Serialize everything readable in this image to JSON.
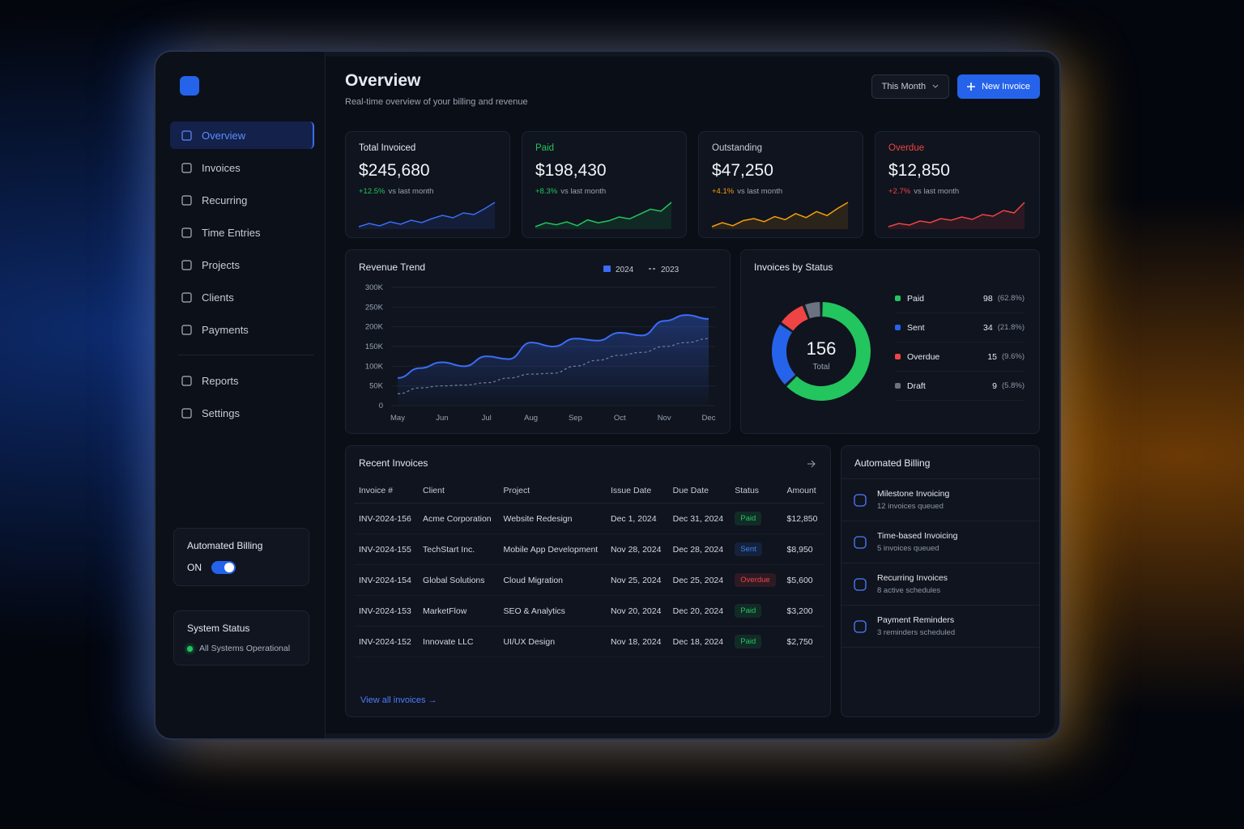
{
  "sidebar": {
    "nav": [
      "Overview",
      "Invoices",
      "Recurring",
      "Time Entries",
      "Projects",
      "Clients",
      "Payments"
    ],
    "nav_secondary": [
      "Reports",
      "Settings"
    ],
    "billing_card": {
      "title": "Automated Billing",
      "toggle": "ON"
    },
    "status_card": {
      "title": "System Status",
      "status": "All Systems Operational"
    }
  },
  "header": {
    "title": "Overview",
    "subtitle": "Real-time overview of your billing and revenue",
    "period": "This Month",
    "button": "New Invoice"
  },
  "kpis": [
    {
      "label": "Total Invoiced",
      "value": "$245,680",
      "change": "+12.5%",
      "change_note": "vs last month",
      "label_color": "#e5e9f2",
      "change_color": "#22c55e",
      "color": "#3b6cf6",
      "sparkline": [
        30,
        34,
        31,
        36,
        33,
        38,
        35,
        40,
        44,
        41,
        47,
        45,
        52,
        60
      ]
    },
    {
      "label": "Paid",
      "value": "$198,430",
      "change": "+8.3%",
      "change_note": "vs last month",
      "label_color": "#22c55e",
      "change_color": "#22c55e",
      "color": "#22c55e",
      "sparkline": [
        20,
        24,
        22,
        25,
        21,
        27,
        24,
        26,
        30,
        28,
        33,
        38,
        36,
        45
      ]
    },
    {
      "label": "Outstanding",
      "value": "$47,250",
      "change": "+4.1%",
      "change_note": "vs last month",
      "label_color": "#c8cedb",
      "change_color": "#f59e0b",
      "color": "#f59e0b",
      "sparkline": [
        20,
        24,
        21,
        26,
        28,
        25,
        30,
        27,
        33,
        29,
        35,
        31,
        38,
        44
      ]
    },
    {
      "label": "Overdue",
      "value": "$12,850",
      "change": "+2.7%",
      "change_note": "vs last month",
      "label_color": "#ef4444",
      "change_color": "#ef4444",
      "color": "#ef4444",
      "sparkline": [
        18,
        22,
        20,
        25,
        23,
        28,
        26,
        30,
        27,
        33,
        31,
        38,
        35,
        48
      ]
    }
  ],
  "revenue_trend": {
    "type": "line",
    "title": "Revenue Trend",
    "categories": [
      "May",
      null,
      "Jun",
      null,
      "Jul",
      null,
      "Aug",
      null,
      "Sep",
      null,
      "Oct",
      null,
      "Nov",
      null,
      "Dec"
    ],
    "series": [
      {
        "name": "2024",
        "color": "#3b6cf6",
        "values": [
          70000,
          95000,
          110000,
          100000,
          125000,
          118000,
          160000,
          150000,
          170000,
          165000,
          185000,
          178000,
          215000,
          230000,
          220000
        ]
      },
      {
        "name": "2023",
        "color": "#7d8697",
        "dashed": true,
        "values": [
          30000,
          45000,
          50000,
          52000,
          58000,
          70000,
          80000,
          82000,
          100000,
          115000,
          128000,
          135000,
          150000,
          160000,
          170000
        ]
      }
    ],
    "ylim": [
      0,
      300000
    ],
    "yticks": [
      0,
      {
        "value": 50000,
        "label": "50K"
      },
      {
        "value": 100000,
        "label": "100K"
      },
      {
        "value": 150000,
        "label": "150K"
      },
      {
        "value": 200000,
        "label": "200K"
      },
      {
        "value": 250000,
        "label": "250K"
      },
      {
        "value": 300000,
        "label": "300K"
      }
    ],
    "grid": true
  },
  "status_chart": {
    "type": "pie",
    "title": "Invoices by Status",
    "total": 156,
    "total_label": "Total",
    "categories": [
      "Paid",
      "Sent",
      "Overdue",
      "Draft"
    ],
    "values": [
      98,
      34,
      15,
      9
    ],
    "shares": [
      "(62.8%)",
      "(21.8%)",
      "(9.6%)",
      "(5.8%)"
    ],
    "colors": [
      "#22c55e",
      "#2563eb",
      "#ef4444",
      "#6b7280"
    ]
  },
  "recent_invoices": {
    "title": "Recent Invoices",
    "columns": [
      "Invoice #",
      "Client",
      "Project",
      "Issue Date",
      "Due Date",
      "Status",
      "Amount"
    ],
    "rows": [
      [
        "INV-2024-156",
        "Acme Corporation",
        "Website Redesign",
        "Dec 1, 2024",
        "Dec 31, 2024",
        "Paid",
        "$12,850"
      ],
      [
        "INV-2024-155",
        "TechStart Inc.",
        "Mobile App Development",
        "Nov 28, 2024",
        "Dec 28, 2024",
        "Sent",
        "$8,950"
      ],
      [
        "INV-2024-154",
        "Global Solutions",
        "Cloud Migration",
        "Nov 25, 2024",
        "Dec 25, 2024",
        "Overdue",
        "$5,600"
      ],
      [
        "INV-2024-153",
        "MarketFlow",
        "SEO & Analytics",
        "Nov 20, 2024",
        "Dec 20, 2024",
        "Paid",
        "$3,200"
      ],
      [
        "INV-2024-152",
        "Innovate LLC",
        "UI/UX Design",
        "Nov 18, 2024",
        "Dec 18, 2024",
        "Paid",
        "$2,750"
      ]
    ],
    "status_colors": [
      "#22c55e",
      "#3b82f6",
      "#ef4444",
      "#22c55e",
      "#22c55e"
    ],
    "link": "View all invoices"
  },
  "automated_billing": {
    "title": "Automated Billing",
    "items": [
      {
        "title": "Milestone Invoicing",
        "detail": "12 invoices queued"
      },
      {
        "title": "Time-based Invoicing",
        "detail": "5 invoices queued"
      },
      {
        "title": "Recurring Invoices",
        "detail": "8 active schedules"
      },
      {
        "title": "Payment Reminders",
        "detail": "3 reminders scheduled"
      }
    ]
  }
}
